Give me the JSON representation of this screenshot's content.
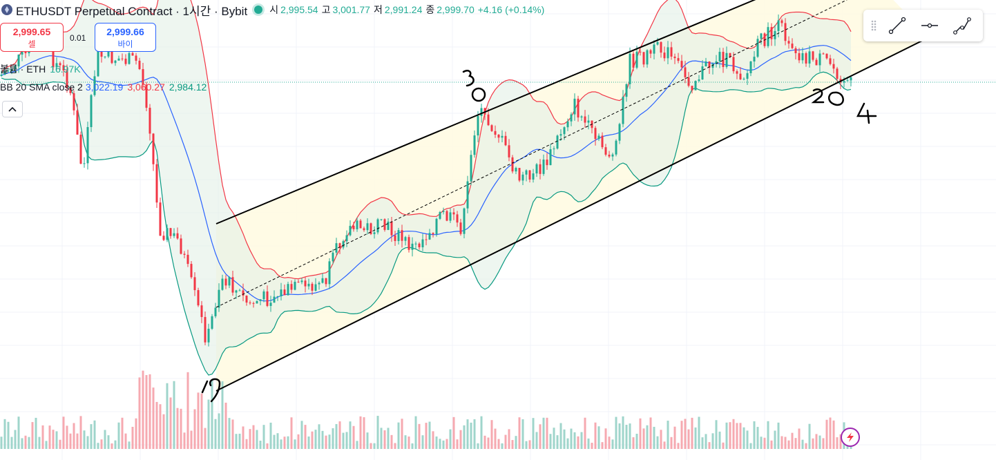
{
  "header": {
    "symbol_title": "ETHUSDT Perpetual Contract · 1시간 · Bybit",
    "ohlc": [
      {
        "label": "시",
        "value": "2,995.54"
      },
      {
        "label": "고",
        "value": "3,001.77"
      },
      {
        "label": "저",
        "value": "2,991.24"
      },
      {
        "label": "종",
        "value": "2,999.70"
      }
    ],
    "change": "+4.16 (+0.14%)"
  },
  "trade": {
    "sell_price": "2,999.65",
    "sell_label": "셀",
    "spread": "0.01",
    "buy_price": "2,999.66",
    "buy_label": "바이"
  },
  "volume_indicator": {
    "label": "볼륨 · ETH",
    "value": "16.97K"
  },
  "bb_indicator": {
    "label": "BB 20 SMA close 2",
    "basis": "3,022.19",
    "upper": "3,060.27",
    "lower": "2,984.12"
  },
  "annotations": {
    "label_1": "19",
    "label_2": "3",
    "label_3": "20",
    "label_4": "4"
  },
  "toolbar": {
    "tools": [
      "trend-line-tool",
      "horizontal-ray-tool",
      "path-tool"
    ]
  },
  "colors": {
    "up": "#22ab94",
    "down": "#f23645",
    "bb_basis": "#2962ff",
    "bb_upper": "#f23645",
    "bb_lower": "#089981",
    "bb_fill": "#eef5e4",
    "channel_fill": "#fffbe0",
    "vol_up": "#9fd5cb",
    "vol_down": "#f6a9b0"
  }
}
